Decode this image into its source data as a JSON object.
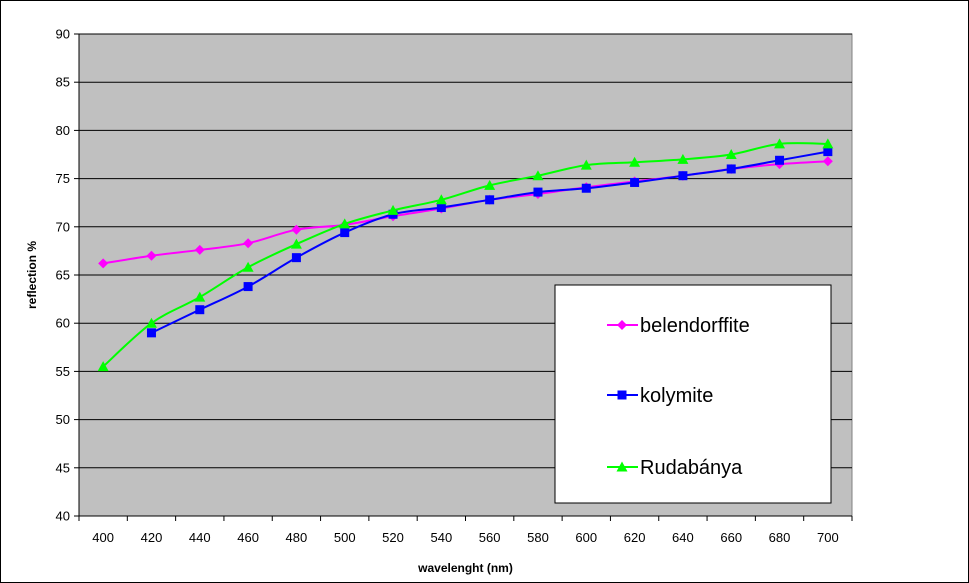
{
  "chart_data": {
    "type": "line",
    "title": "",
    "xlabel": "wavelenght (nm)",
    "ylabel": "reflection %",
    "xlim": [
      390,
      710
    ],
    "ylim": [
      40,
      90
    ],
    "x_ticks": [
      400,
      420,
      440,
      460,
      480,
      500,
      520,
      540,
      560,
      580,
      600,
      620,
      640,
      660,
      680,
      700
    ],
    "y_ticks": [
      40,
      45,
      50,
      55,
      60,
      65,
      70,
      75,
      80,
      85,
      90
    ],
    "grid": true,
    "plot_background": "#c0c0c0",
    "legend_position": "bottom-right",
    "series": [
      {
        "name": "belendorffite",
        "color": "#ff00ff",
        "marker": "diamond",
        "x": [
          400,
          420,
          440,
          460,
          480,
          500,
          520,
          540,
          560,
          580,
          600,
          620,
          640,
          660,
          680,
          700
        ],
        "y": [
          66.2,
          67.0,
          67.6,
          68.3,
          69.7,
          70.2,
          71.1,
          71.9,
          72.8,
          73.4,
          74.1,
          74.7,
          75.3,
          76.0,
          76.5,
          76.8
        ]
      },
      {
        "name": "kolymite",
        "color": "#0000ff",
        "marker": "square",
        "x": [
          420,
          440,
          460,
          480,
          500,
          520,
          540,
          560,
          580,
          600,
          620,
          640,
          660,
          680,
          700
        ],
        "y": [
          59.0,
          61.4,
          63.8,
          66.8,
          69.4,
          71.3,
          72.0,
          72.8,
          73.6,
          74.0,
          74.6,
          75.3,
          76.0,
          76.9,
          77.8
        ]
      },
      {
        "name": "Rudabánya",
        "color": "#00ff00",
        "marker": "triangle",
        "x": [
          400,
          420,
          440,
          460,
          480,
          500,
          520,
          540,
          560,
          580,
          600,
          620,
          640,
          660,
          680,
          700
        ],
        "y": [
          55.5,
          60.0,
          62.7,
          65.8,
          68.2,
          70.3,
          71.7,
          72.8,
          74.3,
          75.3,
          76.4,
          76.7,
          77.0,
          77.5,
          78.6,
          78.6
        ]
      }
    ]
  }
}
